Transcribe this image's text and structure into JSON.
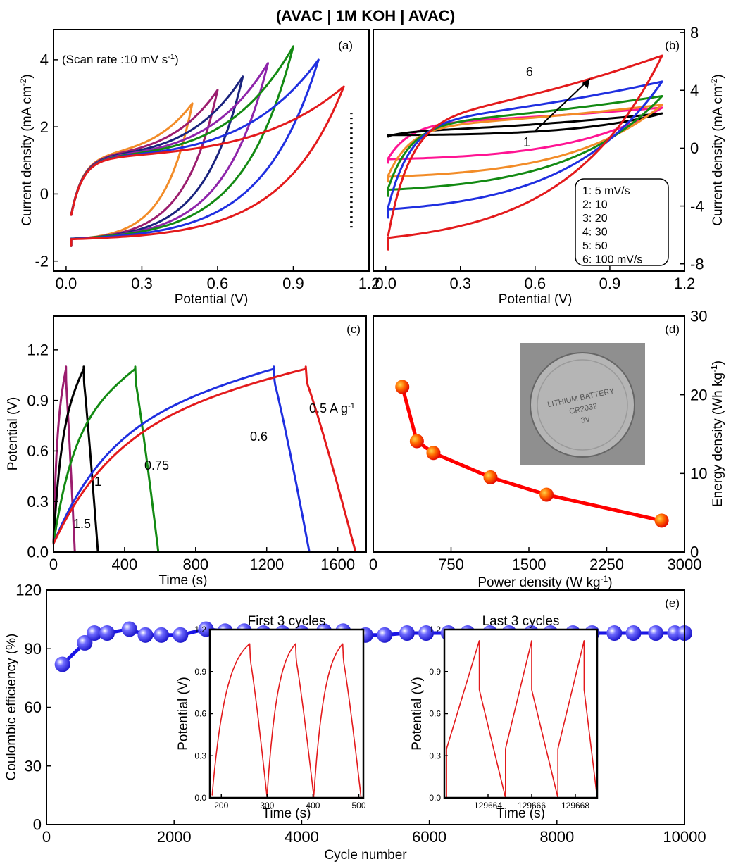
{
  "figure_title": "(AVAC | 1M KOH | AVAC)",
  "chart_data": [
    {
      "id": "a",
      "type": "line",
      "panel_label": "(a)",
      "annotation": "(Scan rate :10 mV s",
      "annotation_sup": "-1",
      "annotation_tail": ")",
      "xlabel": "Potential (V)",
      "ylabel": "Current density (mA cm",
      "ylabel_sup": "-2",
      "ylabel_tail": ")",
      "xlim": [
        -0.05,
        1.2
      ],
      "ylim": [
        -2.3,
        4.9
      ],
      "x_ticks": [
        0.0,
        0.3,
        0.6,
        0.9,
        1.2
      ],
      "x_tick_labels": [
        "0.0",
        "0.3",
        "0.6",
        "0.9",
        "1.2"
      ],
      "y_ticks": [
        -2,
        0,
        2,
        4
      ],
      "y_tick_labels": [
        "-2",
        "0",
        "2",
        "4"
      ],
      "dotted_marker": {
        "x": 1.13,
        "y_from": -1.0,
        "y_to": 2.4
      },
      "series": [
        {
          "color": "#f28c28",
          "vmax": 0.5,
          "imax": 2.7
        },
        {
          "color": "#9b1d6e",
          "vmax": 0.6,
          "imax": 3.1
        },
        {
          "color": "#1a237e",
          "vmax": 0.7,
          "imax": 3.5
        },
        {
          "color": "#8e24aa",
          "vmax": 0.8,
          "imax": 3.9
        },
        {
          "color": "#138a13",
          "vmax": 0.9,
          "imax": 4.4
        },
        {
          "color": "#1f2fe0",
          "vmax": 1.0,
          "imax": 4.0
        },
        {
          "color": "#e31a1c",
          "vmax": 1.1,
          "imax": 3.2
        }
      ]
    },
    {
      "id": "b",
      "type": "line",
      "panel_label": "(b)",
      "xlabel": "Potential (V)",
      "ylabel": "Current density (mA cm",
      "ylabel_sup": "-2",
      "ylabel_tail": ")",
      "xlim": [
        -0.05,
        1.2
      ],
      "ylim": [
        -8.5,
        8.2
      ],
      "x_ticks": [
        0.0,
        0.3,
        0.6,
        0.9,
        1.2
      ],
      "x_tick_labels": [
        "0.0",
        "0.3",
        "0.6",
        "0.9",
        "1.2"
      ],
      "y_ticks": [
        -8,
        -4,
        0,
        4,
        8
      ],
      "y_tick_labels": [
        "-8",
        "-4",
        "0",
        "4",
        "8"
      ],
      "arrow_label_start": "1",
      "arrow_label_end": "6",
      "legend": [
        "1: 5 mV/s",
        "2: 10",
        "3: 20",
        "4: 30",
        "5: 50",
        "6: 100 mV/s"
      ],
      "series": [
        {
          "color": "#ff1493",
          "imin": -1.0,
          "imax": 2.8,
          "plateau": 1.8
        },
        {
          "color": "#000000",
          "imin": 0.8,
          "imax": 2.4,
          "plateau": 1.2
        },
        {
          "color": "#f28c28",
          "imin": -2.3,
          "imax": 3.0,
          "plateau": 1.6
        },
        {
          "color": "#138a13",
          "imin": -3.3,
          "imax": 3.6,
          "plateau": 1.8
        },
        {
          "color": "#1f2fe0",
          "imin": -4.8,
          "imax": 4.6,
          "plateau": 2.0
        },
        {
          "color": "#e31a1c",
          "imin": -7.0,
          "imax": 6.4,
          "plateau": 2.2
        }
      ]
    },
    {
      "id": "c",
      "type": "line",
      "panel_label": "(c)",
      "xlabel": "Time (s)",
      "ylabel": "Potential (V)",
      "xlim": [
        0,
        1760
      ],
      "ylim": [
        0,
        1.4
      ],
      "x_ticks": [
        0,
        400,
        800,
        1200,
        1600
      ],
      "x_tick_labels": [
        "0",
        "400",
        "800",
        "1200",
        "1600"
      ],
      "y_ticks": [
        0.0,
        0.3,
        0.6,
        0.9,
        1.2
      ],
      "y_tick_labels": [
        "0.0",
        "0.3",
        "0.6",
        "0.9",
        "1.2"
      ],
      "series": [
        {
          "name": "1.5",
          "color": "#9b1d6e",
          "t_charge": 70,
          "t_end": 120
        },
        {
          "name": "1",
          "color": "#000000",
          "t_charge": 170,
          "t_end": 250
        },
        {
          "name": "0.75",
          "color": "#138a13",
          "t_charge": 460,
          "t_end": 590
        },
        {
          "name": "0.6",
          "color": "#1f2fe0",
          "t_charge": 1240,
          "t_end": 1440
        },
        {
          "name": "0.5 A g",
          "name_sup": "-1",
          "color": "#e31a1c",
          "t_charge": 1420,
          "t_end": 1700
        }
      ]
    },
    {
      "id": "d",
      "type": "line",
      "panel_label": "(d)",
      "xlabel": "Power density (W kg",
      "xlabel_sup": "-1",
      "xlabel_tail": ")",
      "ylabel": "Energy density (Wh kg",
      "ylabel_sup": "-1",
      "ylabel_tail": ")",
      "xlim": [
        0,
        3000
      ],
      "ylim": [
        0,
        30
      ],
      "x_ticks": [
        0,
        750,
        1500,
        2250,
        3000
      ],
      "x_tick_labels": [
        "0",
        "750",
        "1500",
        "2250",
        "3000"
      ],
      "y_ticks": [
        0,
        10,
        20,
        30
      ],
      "y_tick_labels": [
        "0",
        "10",
        "20",
        "30"
      ],
      "inset_photo_text": [
        "LITHIUM BATTERY",
        "CR2032",
        "3V"
      ],
      "x": [
        280,
        420,
        580,
        1130,
        1670,
        2780
      ],
      "y": [
        21,
        14.1,
        12.6,
        9.5,
        7.3,
        4.0
      ]
    },
    {
      "id": "e",
      "type": "scatter",
      "panel_label": "(e)",
      "xlabel": "Cycle number",
      "ylabel": "Coulombic efficiency (%)",
      "xlim": [
        0,
        10000
      ],
      "ylim": [
        0,
        120
      ],
      "x_ticks": [
        0,
        2000,
        4000,
        6000,
        8000,
        10000
      ],
      "x_tick_labels": [
        "0",
        "2000",
        "4000",
        "6000",
        "8000",
        "10000"
      ],
      "y_ticks": [
        0,
        30,
        60,
        90,
        120
      ],
      "y_tick_labels": [
        "0",
        "30",
        "60",
        "90",
        "120"
      ],
      "x": [
        250,
        600,
        750,
        950,
        1300,
        1550,
        1800,
        2100,
        2500,
        2800,
        3100,
        3400,
        3700,
        4000,
        4350,
        4650,
        5000,
        5300,
        5650,
        5950,
        6300,
        6600,
        6950,
        7250,
        7600,
        7900,
        8250,
        8550,
        8900,
        9200,
        9550,
        9850,
        10000
      ],
      "y": [
        82,
        93,
        98,
        98,
        100,
        97,
        97,
        97,
        100,
        99,
        99,
        98,
        98,
        98,
        99,
        99,
        97,
        97,
        98,
        98,
        98,
        98,
        98,
        98,
        98,
        98,
        98,
        98,
        98,
        98,
        98,
        98,
        98
      ]
    },
    {
      "id": "e-inset-first",
      "type": "line",
      "title": "First 3 cycles",
      "xlabel": "Time (s)",
      "ylabel": "Potential (V)",
      "xlim": [
        175,
        510
      ],
      "ylim": [
        0,
        1.2
      ],
      "x_ticks": [
        200,
        300,
        400,
        500
      ],
      "x_tick_labels": [
        "200",
        "300",
        "400",
        "500"
      ],
      "y_ticks": [
        0.0,
        0.3,
        0.6,
        0.9,
        1.2
      ],
      "y_tick_labels": [
        "0.0",
        "0.3",
        "0.6",
        "0.9",
        "1.2"
      ],
      "cycles": [
        [
          180,
          262,
          300
        ],
        [
          300,
          362,
          402
        ],
        [
          402,
          465,
          505
        ]
      ],
      "color": "#e31a1c"
    },
    {
      "id": "e-inset-last",
      "type": "line",
      "title": "Last 3 cycles",
      "xlabel": "Time (s)",
      "ylabel": "Potential (V)",
      "xlim": [
        129662.0,
        129669.0
      ],
      "ylim": [
        0,
        1.2
      ],
      "x_ticks": [
        129664,
        129666,
        129668
      ],
      "x_tick_labels": [
        "129664",
        "129666",
        "129668"
      ],
      "y_ticks": [
        0.0,
        0.3,
        0.6,
        0.9,
        1.2
      ],
      "y_tick_labels": [
        "0.0",
        "0.3",
        "0.6",
        "0.9",
        "1.2"
      ],
      "cycles": [
        [
          129662.1,
          129663.6,
          129664.8
        ],
        [
          129664.8,
          129666.0,
          129667.2
        ],
        [
          129667.2,
          129668.4,
          129669.0
        ]
      ],
      "color": "#e31a1c"
    }
  ]
}
